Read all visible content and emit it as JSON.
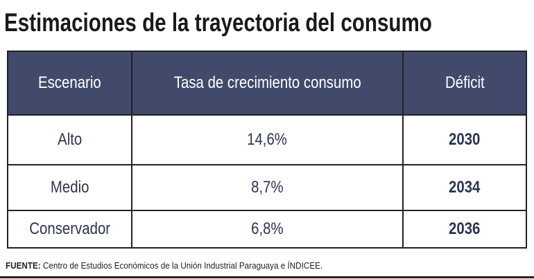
{
  "header": {
    "title": "Estimaciones de la trayectoria del consumo"
  },
  "table": {
    "columns": [
      "Escenario",
      "Tasa de crecimiento consumo",
      "Déficit"
    ],
    "rows": [
      [
        "Alto",
        "14,6%",
        "2030"
      ],
      [
        "Medio",
        "8,7%",
        "2034"
      ],
      [
        "Conservador",
        "6,8%",
        "2036"
      ]
    ]
  },
  "source": {
    "label": "FUENTE:",
    "text": "Centro de Estudios Económicos de la Unión Industrial Paraguaya e ÍNDICEE."
  }
}
